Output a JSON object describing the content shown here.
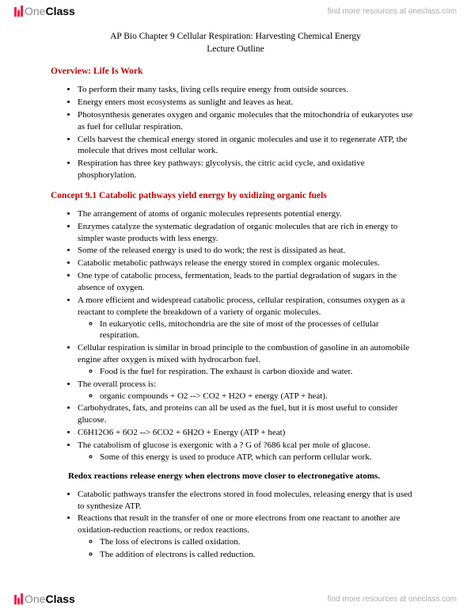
{
  "brand": {
    "name_prefix": "One",
    "name_suffix": "Class",
    "tagline": "find more resources at oneclass.com"
  },
  "title": {
    "line1": "AP Bio Chapter 9 Cellular Respiration: Harvesting Chemical Energy",
    "line2": "Lecture Outline"
  },
  "sections": {
    "s1": {
      "heading": "Overview: Life Is Work",
      "bullets": [
        "To perform their many tasks, living cells require energy from outside sources.",
        "Energy enters most ecosystems as sunlight and leaves as heat.",
        "Photosynthesis generates oxygen and organic molecules that the mitochondria of eukaryotes use as fuel for cellular respiration.",
        "Cells harvest the chemical energy stored in organic molecules and use it to regenerate ATP, the molecule that drives most cellular work.",
        "Respiration has three key pathways: glycolysis, the citric acid cycle, and oxidative phosphorylation."
      ]
    },
    "s2": {
      "heading": "Concept 9.1 Catabolic pathways yield energy by oxidizing organic fuels",
      "b": [
        "The arrangement of atoms of organic molecules represents potential energy.",
        "Enzymes catalyze the systematic degradation of organic molecules that are rich in energy to simpler waste products with less energy.",
        "Some of the released energy is used to do work; the rest is dissipated as heat.",
        "Catabolic metabolic pathways release the energy stored in complex organic molecules.",
        "One type of catabolic process, fermentation, leads to the partial degradation of sugars in the absence of oxygen.",
        "A more efficient and widespread catabolic process, cellular respiration, consumes oxygen as a reactant to complete the breakdown of a variety of organic molecules.",
        "In eukaryotic cells, mitochondria are the site of most of the processes of cellular respiration.",
        "Cellular respiration is similar in broad principle to the combustion of gasoline in an automobile engine after oxygen is mixed with hydrocarbon fuel.",
        "Food is the fuel for respiration. The exhaust is carbon dioxide and water.",
        "The overall process is:",
        "organic compounds + O2 --> CO2 + H2O + energy (ATP + heat).",
        "Carbohydrates, fats, and proteins can all be used as the fuel, but it is most useful to consider glucose.",
        "C6H12O6 + 6O2 --> 6CO2 + 6H2O + Energy (ATP + heat)",
        "The catabolism of glucose is exergonic with a ? G of ?686 kcal per mole of glucose.",
        "Some of this energy is used to produce ATP, which can perform cellular work."
      ]
    },
    "s3": {
      "heading": "Redox reactions release energy when electrons move closer to electronegative atoms.",
      "b": [
        "Catabolic pathways transfer the electrons stored in food molecules, releasing energy that is used to synthesize ATP.",
        "Reactions that result in the transfer of one or more electrons from one reactant to another are oxidation-reduction reactions, or redox reactions.",
        "The loss of electrons is called oxidation.",
        "The addition of electrons is called reduction."
      ]
    }
  }
}
